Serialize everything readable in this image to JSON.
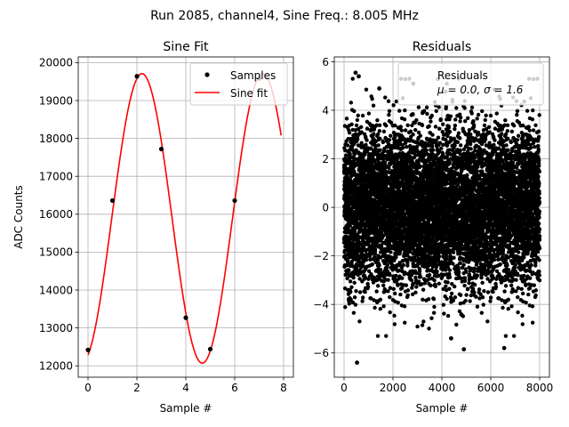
{
  "suptitle": "Run 2085, channel4, Sine Freq.: 8.005 MHz",
  "chart_data": [
    {
      "type": "scatter",
      "title": "Sine Fit",
      "xlabel": "Sample #",
      "ylabel": "ADC Counts",
      "xlim": [
        -0.4,
        8.4
      ],
      "ylim": [
        11700,
        20150
      ],
      "xticks": [
        0,
        2,
        4,
        6,
        8
      ],
      "yticks": [
        12000,
        13000,
        14000,
        15000,
        16000,
        17000,
        18000,
        19000,
        20000
      ],
      "grid": true,
      "legend_position": "top-right",
      "series": [
        {
          "name": "Samples",
          "style": "markers",
          "color": "#000000",
          "points": [
            [
              0,
              12420
            ],
            [
              1,
              16360
            ],
            [
              2,
              19640
            ],
            [
              3,
              17720
            ],
            [
              4,
              13270
            ],
            [
              5,
              12440
            ],
            [
              6,
              16360
            ],
            [
              7,
              19580
            ]
          ]
        },
        {
          "name": "Sine fit",
          "style": "line",
          "color": "#ff0000",
          "model": {
            "offset": 15890,
            "amplitude": 3820,
            "period": 4.94,
            "phase_x": 0.97,
            "x_range": [
              0,
              7.9
            ]
          }
        }
      ]
    },
    {
      "type": "scatter",
      "title": "Residuals",
      "xlabel": "Sample #",
      "ylabel": "",
      "xlim": [
        -400,
        8400
      ],
      "ylim": [
        -7,
        6.2
      ],
      "xticks": [
        0,
        2000,
        4000,
        6000,
        8000
      ],
      "yticks": [
        -6,
        -4,
        -2,
        0,
        2,
        4,
        6
      ],
      "grid": true,
      "legend_position": "top-right",
      "n_points": 8000,
      "mean": 0.0,
      "sigma": 1.6,
      "series": [
        {
          "name": "Residuals",
          "stats_line": "μ = 0.0, σ = 1.6",
          "color": "#000000",
          "outliers": [
            [
              530,
              -6.4
            ],
            [
              4900,
              -5.85
            ],
            [
              470,
              5.55
            ],
            [
              600,
              5.4
            ],
            [
              2830,
              5.1
            ],
            [
              6550,
              -5.8
            ],
            [
              1440,
              4.9
            ],
            [
              4380,
              -5.4
            ]
          ]
        }
      ]
    }
  ]
}
